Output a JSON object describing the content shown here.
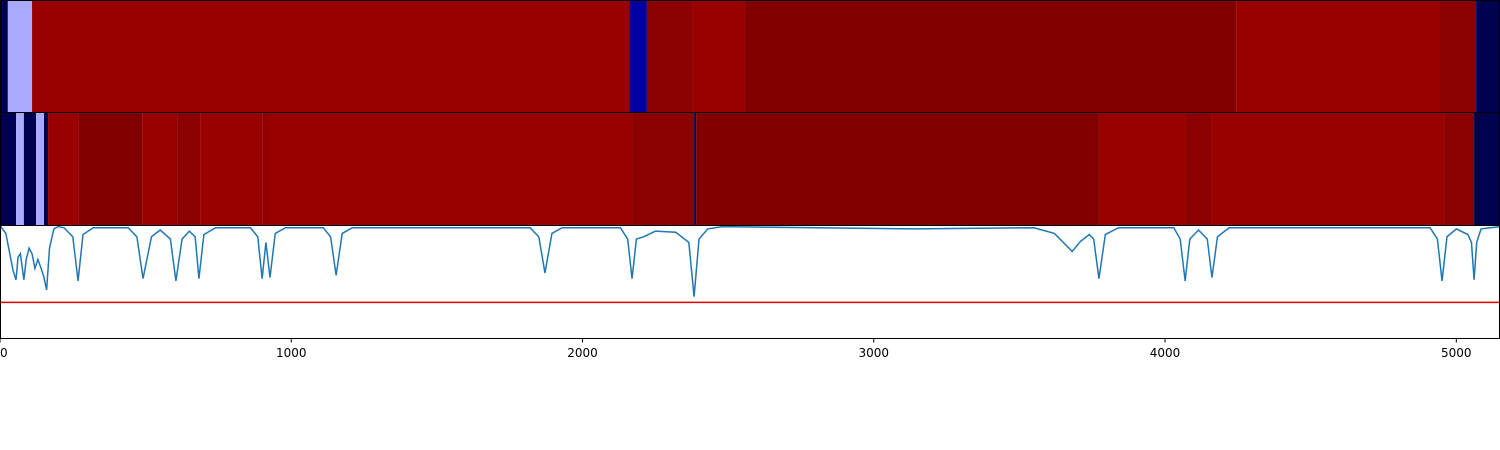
{
  "chart_data": [
    {
      "type": "segments",
      "xlim": [
        0,
        5150
      ],
      "bins": [
        0,
        27,
        110,
        2160,
        2221,
        2376,
        2558,
        4244,
        4944,
        5068,
        5150
      ],
      "colors": [
        "#000050",
        "#aaaaff",
        "#990000",
        "#0000a0",
        "#8b0000",
        "#990000",
        "#800000",
        "#990000",
        "#8b0000",
        "#000050"
      ]
    },
    {
      "type": "segments",
      "xlim": [
        0,
        5150
      ],
      "bins": [
        0,
        55,
        82,
        124,
        151,
        165,
        271,
        488,
        608,
        687,
        900,
        927,
        2170,
        2383,
        2390,
        3773,
        4072,
        4161,
        4958,
        5061,
        5150
      ],
      "colors": [
        "#000050",
        "#aaaaff",
        "#000050",
        "#aaaaff",
        "#000050",
        "#990000",
        "#800000",
        "#990000",
        "#8b0000",
        "#990000",
        "#920000",
        "#990000",
        "#8b0000",
        "#000050",
        "#800000",
        "#990000",
        "#8b0000",
        "#990000",
        "#8b0000",
        "#000050"
      ]
    },
    {
      "type": "line",
      "xlim": [
        0,
        5150
      ],
      "xticks": [
        0,
        1000,
        2000,
        3000,
        4000,
        5000
      ],
      "ylim": [
        0,
        1
      ],
      "color": "#1f77b4",
      "hline": 0.32,
      "hline_color": "#e00000",
      "x": [
        0,
        20,
        45,
        55,
        62,
        70,
        82,
        90,
        100,
        110,
        120,
        130,
        140,
        150,
        160,
        170,
        185,
        200,
        220,
        250,
        268,
        285,
        320,
        440,
        470,
        491,
        520,
        550,
        585,
        604,
        625,
        650,
        670,
        683,
        700,
        740,
        860,
        885,
        900,
        913,
        927,
        945,
        980,
        1110,
        1135,
        1154,
        1175,
        1210,
        1820,
        1850,
        1871,
        1895,
        1930,
        2130,
        2155,
        2170,
        2185,
        2210,
        2250,
        2320,
        2365,
        2383,
        2400,
        2430,
        2480,
        3142,
        3550,
        3620,
        3670,
        3681,
        3710,
        3740,
        3755,
        3773,
        3795,
        3840,
        4030,
        4052,
        4069,
        4085,
        4115,
        4145,
        4161,
        4180,
        4220,
        4910,
        4935,
        4951,
        4968,
        5000,
        5040,
        5052,
        5061,
        5070,
        5085,
        5150
      ],
      "values": [
        1.0,
        0.93,
        0.6,
        0.52,
        0.72,
        0.75,
        0.52,
        0.7,
        0.8,
        0.75,
        0.62,
        0.7,
        0.63,
        0.55,
        0.43,
        0.8,
        0.97,
        0.99,
        0.98,
        0.9,
        0.51,
        0.92,
        0.98,
        0.98,
        0.9,
        0.53,
        0.9,
        0.96,
        0.88,
        0.51,
        0.88,
        0.95,
        0.9,
        0.53,
        0.92,
        0.98,
        0.98,
        0.9,
        0.53,
        0.85,
        0.54,
        0.93,
        0.98,
        0.98,
        0.9,
        0.56,
        0.93,
        0.98,
        0.98,
        0.9,
        0.58,
        0.93,
        0.98,
        0.98,
        0.88,
        0.53,
        0.88,
        0.9,
        0.95,
        0.94,
        0.85,
        0.37,
        0.88,
        0.97,
        0.99,
        0.97,
        0.98,
        0.93,
        0.8,
        0.77,
        0.86,
        0.92,
        0.88,
        0.53,
        0.92,
        0.98,
        0.98,
        0.88,
        0.51,
        0.88,
        0.96,
        0.88,
        0.54,
        0.9,
        0.98,
        0.98,
        0.88,
        0.51,
        0.9,
        0.97,
        0.92,
        0.85,
        0.52,
        0.85,
        0.97,
        0.99
      ]
    }
  ]
}
